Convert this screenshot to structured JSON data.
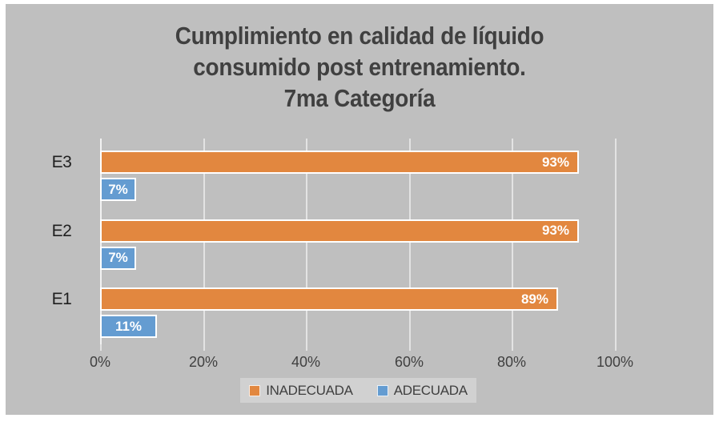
{
  "title": "Cumplimiento en calidad de líquido\nconsumido post entrenamiento.\n7ma Categoría",
  "colors": {
    "chart_background": "#BFBFBF",
    "gridline": "#E3E3E3",
    "axis_line": "#F2F2F2",
    "title_text": "#404040",
    "category_text": "#1F1F1F",
    "axis_text": "#404040",
    "legend_background": "#D1D1D1",
    "legend_text": "#3F3F3F",
    "bar_border": "#FFFFFF",
    "data_label_text": "#FFFFFF",
    "inadecuada": "#E2873F",
    "adecuada": "#649CD1"
  },
  "chart_data": {
    "type": "bar",
    "orientation": "horizontal",
    "title": "Cumplimiento en calidad de líquido consumido post entrenamiento. 7ma Categoría",
    "categories": [
      "E3",
      "E2",
      "E1"
    ],
    "series": [
      {
        "name": "INADECUADA",
        "color": "#E2873F",
        "values": [
          93,
          93,
          89
        ],
        "labels": [
          "93%",
          "93%",
          "89%"
        ]
      },
      {
        "name": "ADECUADA",
        "color": "#649CD1",
        "values": [
          7,
          7,
          11
        ],
        "labels": [
          "7%",
          "7%",
          "11%"
        ]
      }
    ],
    "x_ticks": [
      "0%",
      "20%",
      "40%",
      "60%",
      "80%",
      "100%"
    ],
    "xlim": [
      0,
      100
    ],
    "grid": true,
    "legend_position": "bottom"
  }
}
